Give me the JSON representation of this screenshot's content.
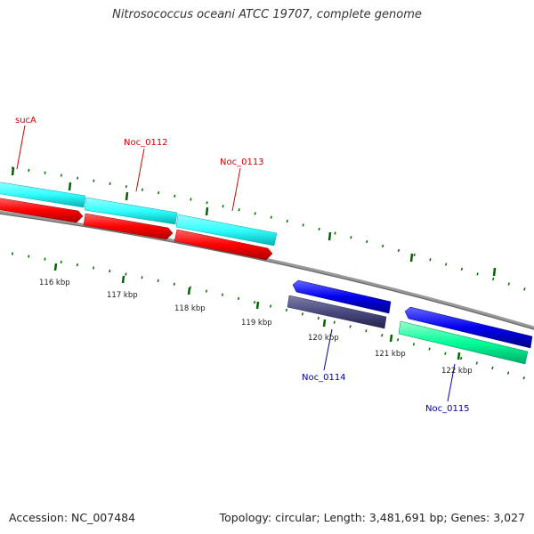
{
  "title": "Nitrosococcus oceani ATCC 19707, complete genome",
  "footer": {
    "accession": "Accession: NC_007484",
    "stats": "Topology: circular; Length: 3,481,691 bp; Genes: 3,027"
  },
  "genes": [
    {
      "name": "sucA",
      "label_color": "#cc0000"
    },
    {
      "name": "Noc_0112",
      "label_color": "#cc0000"
    },
    {
      "name": "Noc_0113",
      "label_color": "#cc0000"
    },
    {
      "name": "Noc_0114",
      "label_color": "#000099"
    },
    {
      "name": "Noc_0115",
      "label_color": "#000099"
    }
  ],
  "ticks": [
    "116 kbp",
    "117 kbp",
    "118 kbp",
    "119 kbp",
    "120 kbp",
    "121 kbp",
    "122 kbp"
  ],
  "colors": {
    "cds_forward": "#33ffff",
    "gene_forward": "#ff0000",
    "cds_reverse": "#00ff99",
    "gene_reverse": "#0000ee",
    "gene_reverse_dark": "#333366",
    "backbone": "#888888",
    "tick": "#006600"
  }
}
